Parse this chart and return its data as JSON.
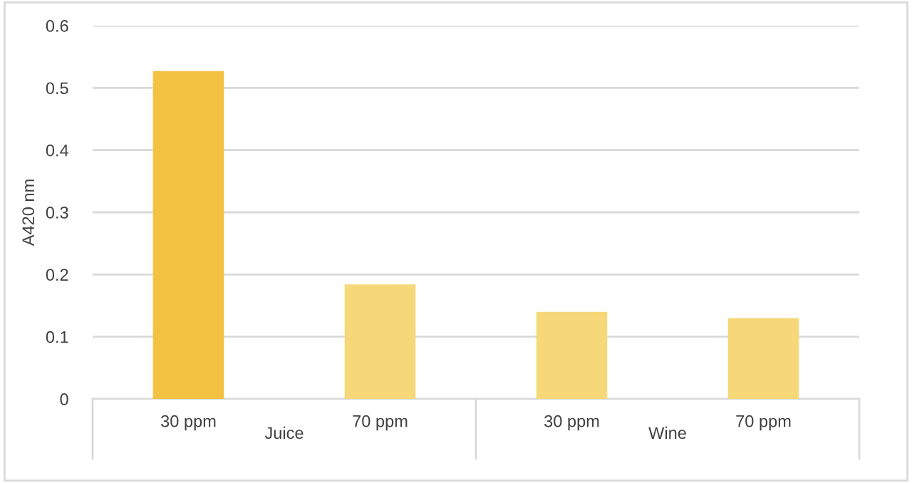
{
  "chart_data": {
    "type": "bar",
    "ylabel": "A420 nm",
    "categories": [
      "30 ppm",
      "70 ppm",
      "30 ppm",
      "70 ppm"
    ],
    "values": [
      0.527,
      0.184,
      0.14,
      0.13
    ],
    "colors": [
      "#f4c242",
      "#f7d878",
      "#f7d878",
      "#f7d878"
    ],
    "ylim": [
      0,
      0.6
    ],
    "yticks": [
      0,
      0.1,
      0.2,
      0.3,
      0.4,
      0.5,
      0.6
    ],
    "grid": "y",
    "annotations": [
      "Juice",
      "Wine"
    ]
  }
}
